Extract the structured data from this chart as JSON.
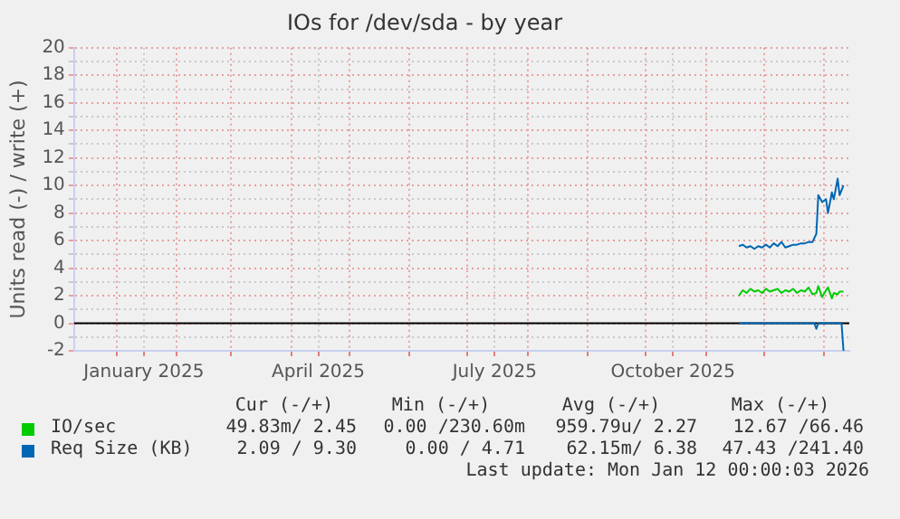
{
  "chart_data": {
    "type": "line",
    "title": "IOs for /dev/sda - by year",
    "ylabel": "Units read (-) / write (+)",
    "xlim": [
      "2024-12-10",
      "2026-01-14"
    ],
    "xticks": [
      {
        "value": "2025-01-01",
        "label": null
      },
      {
        "value": "2025-01-15",
        "label": "January 2025"
      },
      {
        "value": "2025-02-01",
        "label": null
      },
      {
        "value": "2025-03-01",
        "label": null
      },
      {
        "value": "2025-04-01",
        "label": null
      },
      {
        "value": "2025-04-15",
        "label": "April 2025"
      },
      {
        "value": "2025-05-01",
        "label": null
      },
      {
        "value": "2025-06-01",
        "label": null
      },
      {
        "value": "2025-07-01",
        "label": null
      },
      {
        "value": "2025-07-15",
        "label": "July 2025"
      },
      {
        "value": "2025-08-01",
        "label": null
      },
      {
        "value": "2025-09-01",
        "label": null
      },
      {
        "value": "2025-10-01",
        "label": null
      },
      {
        "value": "2025-10-15",
        "label": "October 2025"
      },
      {
        "value": "2025-11-01",
        "label": null
      },
      {
        "value": "2025-12-01",
        "label": null
      },
      {
        "value": "2026-01-01",
        "label": null
      }
    ],
    "ylim": [
      -2,
      20
    ],
    "yticks": [
      -2,
      {
        "value": -1,
        "label": null
      },
      0,
      {
        "value": 1,
        "label": null
      },
      2,
      {
        "value": 3,
        "label": null
      },
      4,
      {
        "value": 5,
        "label": null
      },
      6,
      {
        "value": 7,
        "label": null
      },
      8,
      {
        "value": 9,
        "label": null
      },
      10,
      {
        "value": 11,
        "label": null
      },
      12,
      {
        "value": 13,
        "label": null
      },
      14,
      {
        "value": 15,
        "label": null
      },
      16,
      {
        "value": 17,
        "label": null
      },
      18,
      {
        "value": 19,
        "label": null
      },
      20
    ],
    "grid": true,
    "legend": "bottom",
    "marker": "none",
    "line_style": "solid",
    "ref_lines": [
      {
        "axis": "y",
        "value": 0,
        "label": null,
        "color": "#000000"
      }
    ],
    "series": [
      {
        "name": "IO/sec",
        "color": "#00cc00",
        "x": [
          "2025-11-18",
          "2025-11-20",
          "2025-11-22",
          "2025-11-24",
          "2025-11-26",
          "2025-11-28",
          "2025-11-30",
          "2025-12-02",
          "2025-12-04",
          "2025-12-06",
          "2025-12-08",
          "2025-12-10",
          "2025-12-12",
          "2025-12-14",
          "2025-12-16",
          "2025-12-18",
          "2025-12-20",
          "2025-12-22",
          "2025-12-24",
          "2025-12-26",
          "2025-12-28",
          "2025-12-29",
          "2025-12-31",
          "2026-01-02",
          "2026-01-03",
          "2026-01-05",
          "2026-01-06",
          "2026-01-08",
          "2026-01-09",
          "2026-01-11"
        ],
        "values": [
          2.0,
          2.4,
          2.2,
          2.5,
          2.3,
          2.4,
          2.2,
          2.5,
          2.3,
          2.4,
          2.5,
          2.2,
          2.4,
          2.3,
          2.5,
          2.2,
          2.4,
          2.3,
          2.6,
          2.1,
          2.2,
          2.7,
          1.9,
          2.4,
          2.6,
          1.8,
          2.2,
          2.1,
          2.3,
          2.3
        ]
      },
      {
        "name": "Req Size (KB)",
        "color": "#0066b3",
        "x": [
          "2025-11-18",
          "2025-11-20",
          "2025-11-22",
          "2025-11-24",
          "2025-11-26",
          "2025-11-28",
          "2025-11-30",
          "2025-12-02",
          "2025-12-04",
          "2025-12-06",
          "2025-12-08",
          "2025-12-10",
          "2025-12-12",
          "2025-12-14",
          "2025-12-16",
          "2025-12-18",
          "2025-12-20",
          "2025-12-22",
          "2025-12-24",
          "2025-12-26",
          "2025-12-28",
          "2025-12-29",
          "2025-12-31",
          "2026-01-02",
          "2026-01-03",
          "2026-01-05",
          "2026-01-06",
          "2026-01-08",
          "2026-01-09",
          "2026-01-11"
        ],
        "values": [
          5.6,
          5.7,
          5.5,
          5.6,
          5.4,
          5.6,
          5.5,
          5.7,
          5.5,
          5.8,
          5.6,
          5.9,
          5.5,
          5.6,
          5.7,
          5.7,
          5.8,
          5.8,
          5.9,
          5.9,
          6.5,
          9.3,
          8.8,
          9.0,
          8.0,
          9.5,
          9.0,
          10.5,
          9.3,
          10.0
        ]
      },
      {
        "color": "#0066b3",
        "x": [
          "2025-11-18",
          "2025-12-27",
          "2025-12-28",
          "2025-12-29",
          "2026-01-10",
          "2026-01-11"
        ],
        "values": [
          0,
          0,
          -0.4,
          0,
          0,
          -2
        ]
      }
    ],
    "annotations": [
      "Cur (-/+)",
      "Min (-/+)",
      "Avg (-/+)",
      "Max (-/+)",
      "49.83m/ 2.45",
      "0.00 /230.60m",
      "959.79u/ 2.27",
      "12.67 /66.46",
      "2.09 / 9.30",
      "0.00 / 4.71",
      "62.15m/ 6.38",
      "47.43 /241.40",
      "Last update: Mon Jan 12 00:00:03 2026"
    ]
  }
}
